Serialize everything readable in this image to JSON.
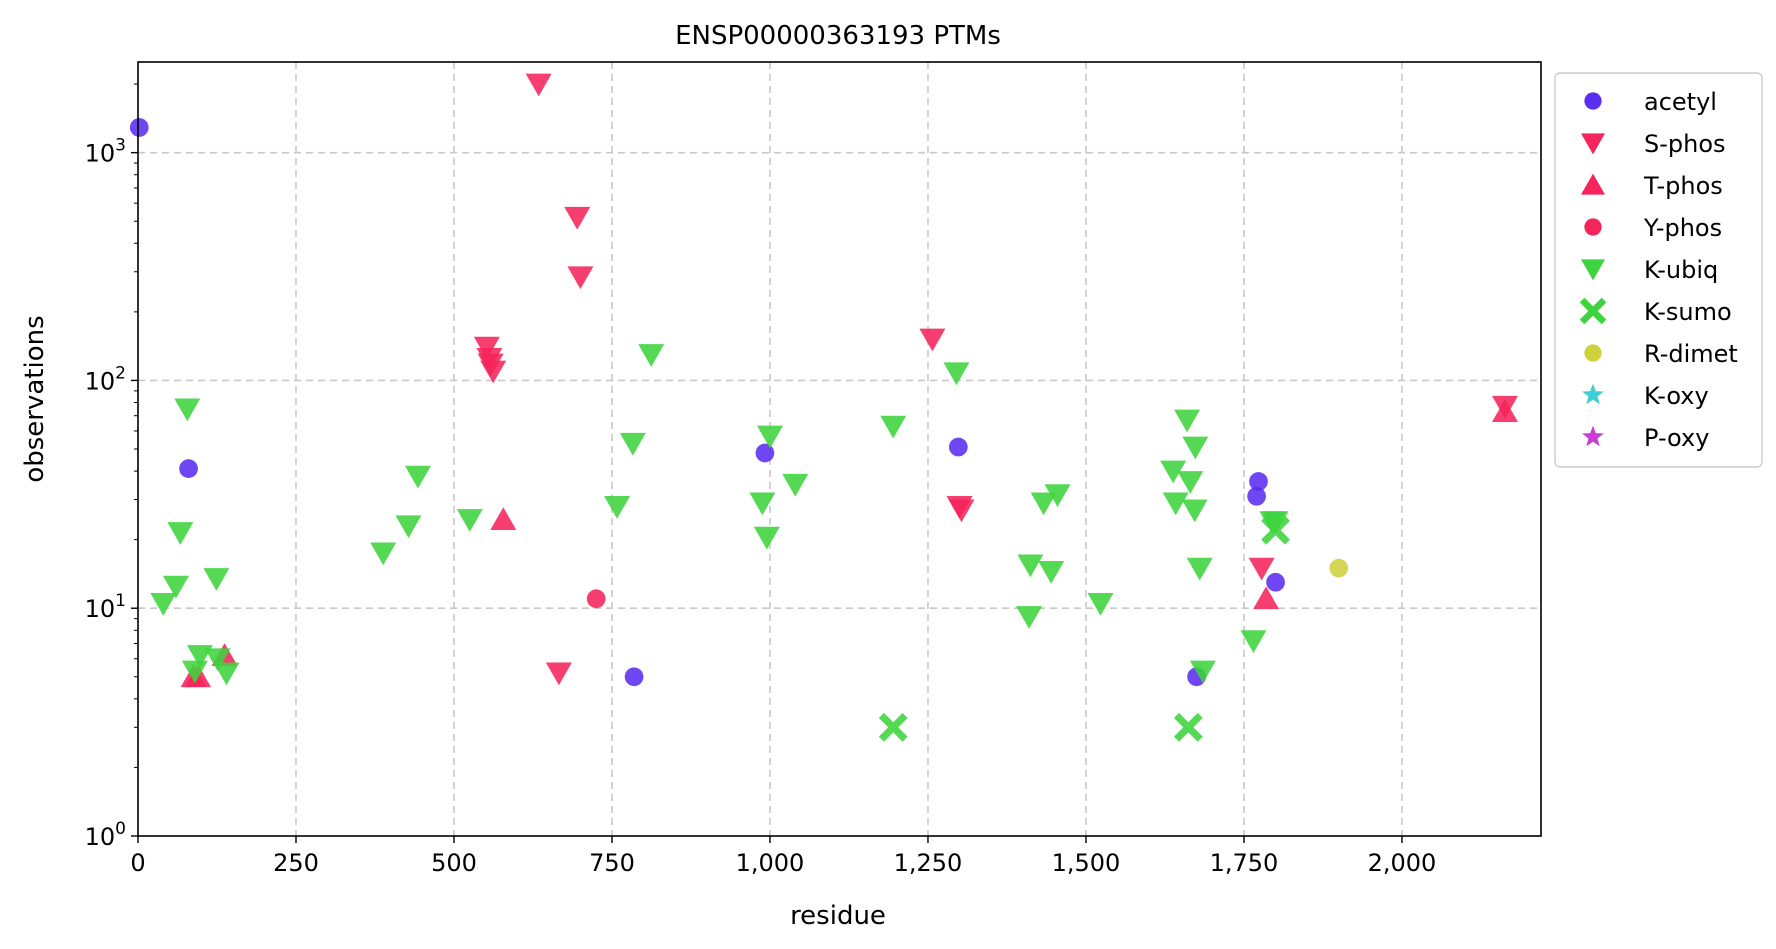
{
  "chart_data": {
    "type": "scatter",
    "title": "ENSP00000363193 PTMs",
    "xlabel": "residue",
    "ylabel": "observations",
    "xlim": [
      0,
      2220
    ],
    "ylim": [
      1,
      2500
    ],
    "yscale": "log",
    "grid": true,
    "legend_position": "outside-right",
    "x_ticks": [
      {
        "value": 0,
        "label": "0"
      },
      {
        "value": 250,
        "label": "250"
      },
      {
        "value": 500,
        "label": "500"
      },
      {
        "value": 750,
        "label": "750"
      },
      {
        "value": 1000,
        "label": "1,000"
      },
      {
        "value": 1250,
        "label": "1,250"
      },
      {
        "value": 1500,
        "label": "1,500"
      },
      {
        "value": 1750,
        "label": "1,750"
      },
      {
        "value": 2000,
        "label": "2,000"
      }
    ],
    "y_ticks": [
      {
        "value": 1,
        "base": "10",
        "exp": "0"
      },
      {
        "value": 10,
        "base": "10",
        "exp": "1"
      },
      {
        "value": 100,
        "base": "10",
        "exp": "2"
      },
      {
        "value": 1000,
        "base": "10",
        "exp": "3"
      }
    ],
    "series": [
      {
        "name": "acetyl",
        "marker": "circle",
        "color": "#5a2ef0",
        "points": [
          [
            2,
            1290
          ],
          [
            80,
            41
          ],
          [
            785,
            5
          ],
          [
            992,
            48
          ],
          [
            1298,
            51
          ],
          [
            1675,
            5
          ],
          [
            1773,
            36
          ],
          [
            1770,
            31
          ],
          [
            1800,
            13
          ]
        ]
      },
      {
        "name": "S-phos",
        "marker": "triangle-down",
        "color": "#f5245a",
        "points": [
          [
            634,
            2000
          ],
          [
            695,
            520
          ],
          [
            700,
            285
          ],
          [
            552,
            140
          ],
          [
            556,
            125
          ],
          [
            558,
            118
          ],
          [
            562,
            110
          ],
          [
            666,
            5.2
          ],
          [
            1257,
            152
          ],
          [
            1300,
            28
          ],
          [
            1303,
            27
          ],
          [
            1778,
            15
          ],
          [
            2163,
            77
          ]
        ]
      },
      {
        "name": "T-phos",
        "marker": "triangle-up",
        "color": "#f5245a",
        "points": [
          [
            578,
            24.5
          ],
          [
            88,
            5
          ],
          [
            95,
            5
          ],
          [
            137,
            6.2
          ],
          [
            1785,
            11
          ],
          [
            2163,
            73
          ]
        ]
      },
      {
        "name": "Y-phos",
        "marker": "circle",
        "color": "#f5245a",
        "points": [
          [
            725,
            11
          ]
        ]
      },
      {
        "name": "K-ubiq",
        "marker": "triangle-down",
        "color": "#3dd43d",
        "points": [
          [
            40,
            10.5
          ],
          [
            60,
            12.5
          ],
          [
            67,
            21.5
          ],
          [
            78,
            75
          ],
          [
            90,
            5.3
          ],
          [
            98,
            6.2
          ],
          [
            124,
            13.5
          ],
          [
            126,
            6
          ],
          [
            140,
            5.2
          ],
          [
            388,
            17.5
          ],
          [
            428,
            23
          ],
          [
            443,
            38
          ],
          [
            525,
            24.5
          ],
          [
            758,
            28
          ],
          [
            783,
            53
          ],
          [
            812,
            130
          ],
          [
            988,
            29
          ],
          [
            995,
            20.5
          ],
          [
            1000,
            57
          ],
          [
            1040,
            35
          ],
          [
            1195,
            63
          ],
          [
            1295,
            108
          ],
          [
            1410,
            9.2
          ],
          [
            1412,
            15.5
          ],
          [
            1433,
            29
          ],
          [
            1445,
            14.5
          ],
          [
            1455,
            31.5
          ],
          [
            1523,
            10.5
          ],
          [
            1638,
            40
          ],
          [
            1642,
            29
          ],
          [
            1660,
            67
          ],
          [
            1665,
            36
          ],
          [
            1672,
            27
          ],
          [
            1673,
            51
          ],
          [
            1680,
            15
          ],
          [
            1685,
            5.3
          ],
          [
            1765,
            7.2
          ],
          [
            1795,
            24
          ],
          [
            1800,
            24
          ]
        ]
      },
      {
        "name": "K-sumo",
        "marker": "x",
        "color": "#3dd43d",
        "points": [
          [
            1195,
            3
          ],
          [
            1662,
            3
          ],
          [
            1800,
            22
          ]
        ]
      },
      {
        "name": "R-dimet",
        "marker": "circle",
        "color": "#cdd23d",
        "points": [
          [
            1900,
            15
          ]
        ]
      },
      {
        "name": "K-oxy",
        "marker": "star",
        "color": "#3dcfd4",
        "points": []
      },
      {
        "name": "P-oxy",
        "marker": "star",
        "color": "#c93dd4",
        "points": []
      }
    ]
  }
}
